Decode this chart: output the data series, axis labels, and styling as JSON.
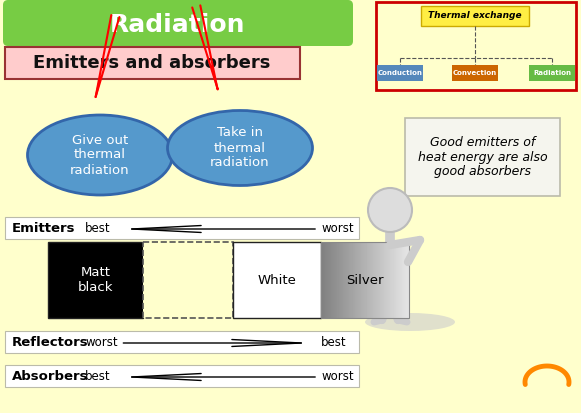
{
  "background_color": "#FFFFCC",
  "title_text": "Radiation",
  "title_bg": "#77CC44",
  "title_fg": "white",
  "subtitle_text": "Emitters and absorbers",
  "subtitle_bg": "#FFCCCC",
  "subtitle_border": "#993333",
  "subtitle_fg": "#111111",
  "ellipse1_text": "Give out\nthermal\nradiation",
  "ellipse1_color": "#5599CC",
  "ellipse1_edge": "#3366AA",
  "ellipse2_text": "Take in\nthermal\nradiation",
  "ellipse2_color": "#5599CC",
  "ellipse2_edge": "#3366AA",
  "note_text": "Good emitters of\nheat energy are also\ngood absorbers",
  "note_bg": "#F5F5EE",
  "note_border": "#BBBBAA",
  "emitters_label": "Emitters",
  "emitters_best": "best",
  "emitters_worst": "worst",
  "reflectors_label": "Reflectors",
  "reflectors_worst": "worst",
  "reflectors_best": "best",
  "absorbers_label": "Absorbers",
  "absorbers_best": "best",
  "absorbers_worst": "worst",
  "matt_black_label": "Matt\nblack",
  "white_label": "White",
  "silver_label": "Silver",
  "thermal_border": "#CC0000",
  "thermal_bg": "#FFFFCC",
  "thermal_title": "Thermal exchange",
  "thermal_title_bg": "#FFEE44",
  "thermal_title_border": "#CCAA00",
  "conduction_text": "Conduction",
  "conduction_bg": "#5588BB",
  "convection_text": "Convection",
  "convection_bg": "#CC6600",
  "radiation_text": "Radiation",
  "radiation_bg": "#66BB44",
  "orange_curl_color": "#FF8800",
  "row_bg": "white",
  "row_border": "#BBBBAA"
}
